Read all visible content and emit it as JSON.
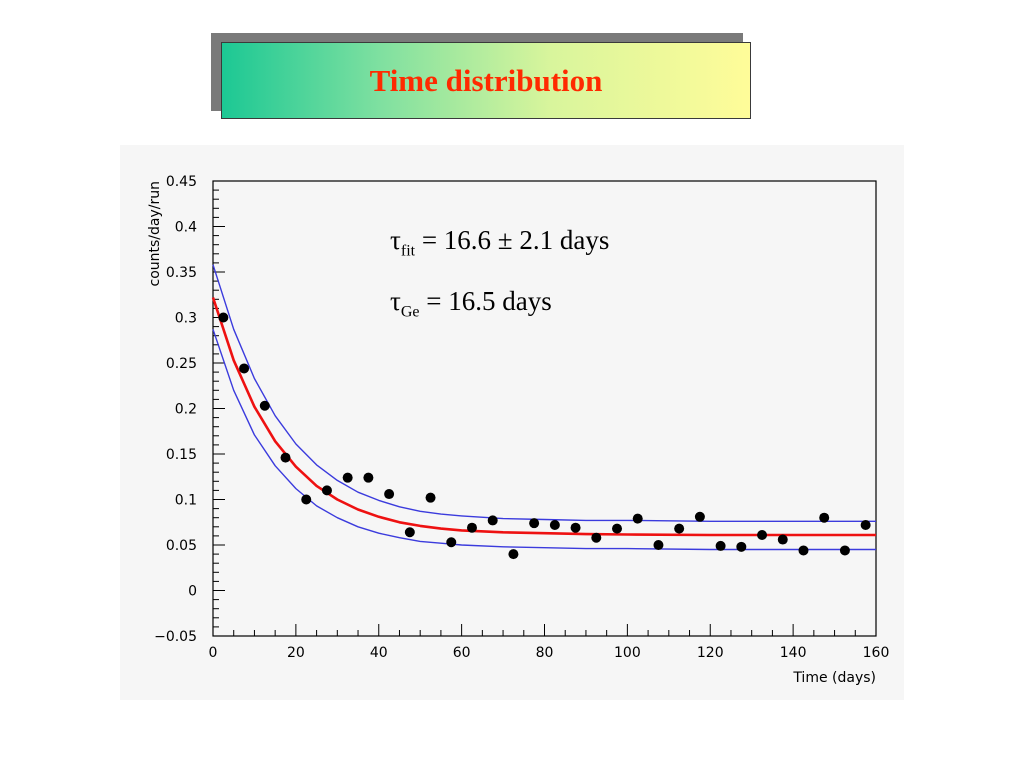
{
  "title": "Time distribution",
  "chart_data": {
    "type": "scatter",
    "xlabel": "Time (days)",
    "ylabel": "counts/day/run",
    "xlim": [
      0,
      160
    ],
    "ylim": [
      -0.05,
      0.45
    ],
    "xticks": [
      "0",
      "20",
      "40",
      "60",
      "80",
      "100",
      "120",
      "140",
      "160"
    ],
    "yticks": [
      "−0.05",
      "0",
      "0.05",
      "0.1",
      "0.15",
      "0.2",
      "0.25",
      "0.3",
      "0.35",
      "0.4",
      "0.45"
    ],
    "grid": false,
    "annotations": [
      {
        "symbol": "τ",
        "sub": "fit",
        "text": " = 16.6 ± 2.1 days"
      },
      {
        "symbol": "τ",
        "sub": "Ge",
        "text": " = 16.5 days"
      }
    ],
    "series": [
      {
        "type": "scatter",
        "color": "#000000",
        "x": [
          2.5,
          7.5,
          12.5,
          17.5,
          22.5,
          27.5,
          32.5,
          37.5,
          42.5,
          47.5,
          52.5,
          57.5,
          62.5,
          67.5,
          72.5,
          77.5,
          82.5,
          87.5,
          92.5,
          97.5,
          102.5,
          107.5,
          112.5,
          117.5,
          122.5,
          127.5,
          132.5,
          137.5,
          142.5,
          147.5,
          152.5,
          157.5
        ],
        "y": [
          0.3,
          0.244,
          0.203,
          0.146,
          0.1,
          0.11,
          0.124,
          0.124,
          0.106,
          0.064,
          0.102,
          0.053,
          0.069,
          0.077,
          0.04,
          0.074,
          0.072,
          0.069,
          0.058,
          0.068,
          0.079,
          0.05,
          0.068,
          0.081,
          0.049,
          0.048,
          0.061,
          0.056,
          0.044,
          0.08,
          0.044,
          0.072
        ]
      },
      {
        "type": "line",
        "color": "#ee1111",
        "x": [
          0,
          5,
          10,
          15,
          20,
          25,
          30,
          35,
          40,
          45,
          50,
          55,
          60,
          70,
          80,
          90,
          100,
          120,
          140,
          160
        ],
        "y": [
          0.322,
          0.253,
          0.202,
          0.164,
          0.136,
          0.115,
          0.1,
          0.089,
          0.081,
          0.075,
          0.071,
          0.068,
          0.066,
          0.064,
          0.063,
          0.062,
          0.0615,
          0.061,
          0.061,
          0.061
        ]
      },
      {
        "type": "line",
        "color": "#3b3bdd",
        "x": [
          0,
          5,
          10,
          15,
          20,
          25,
          30,
          35,
          40,
          45,
          50,
          55,
          60,
          70,
          80,
          90,
          100,
          120,
          140,
          160
        ],
        "y": [
          0.358,
          0.287,
          0.233,
          0.192,
          0.161,
          0.138,
          0.121,
          0.108,
          0.099,
          0.092,
          0.087,
          0.084,
          0.082,
          0.079,
          0.078,
          0.077,
          0.077,
          0.076,
          0.076,
          0.076
        ]
      },
      {
        "type": "line",
        "color": "#3b3bdd",
        "x": [
          0,
          5,
          10,
          15,
          20,
          25,
          30,
          35,
          40,
          45,
          50,
          55,
          60,
          70,
          80,
          90,
          100,
          120,
          140,
          160
        ],
        "y": [
          0.287,
          0.22,
          0.171,
          0.137,
          0.112,
          0.093,
          0.08,
          0.07,
          0.063,
          0.058,
          0.054,
          0.052,
          0.05,
          0.048,
          0.047,
          0.046,
          0.046,
          0.045,
          0.045,
          0.045
        ]
      }
    ]
  }
}
